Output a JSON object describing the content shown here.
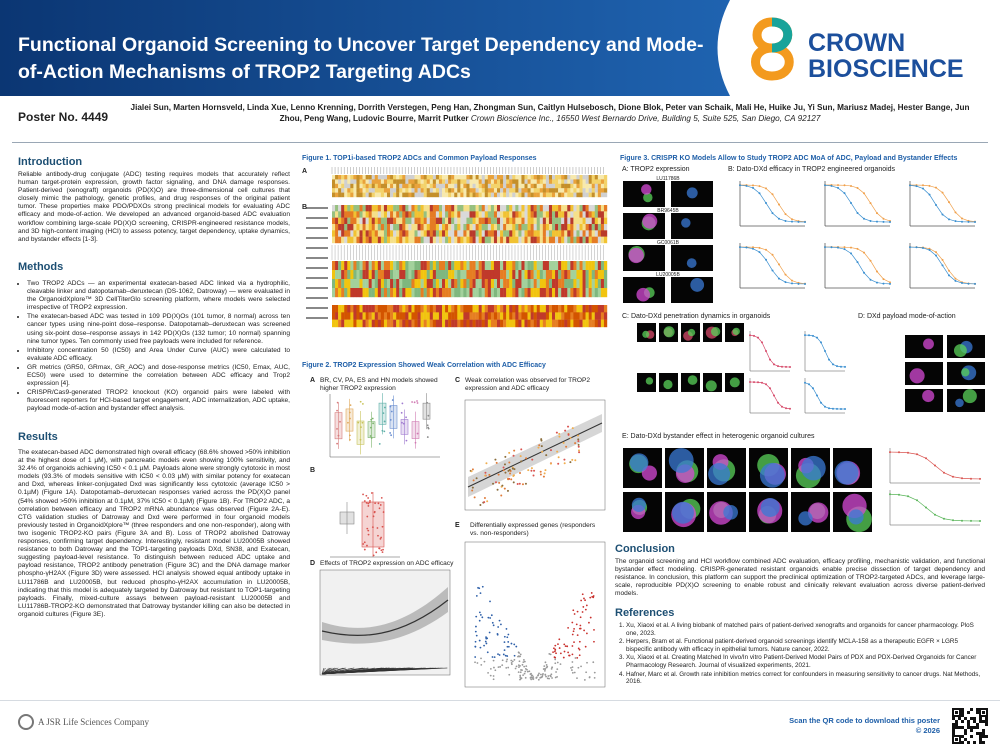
{
  "header": {
    "title": "Functional Organoid Screening to Uncover Target Dependency and Mode-of-Action Mechanisms of TROP2 Targeting ADCs",
    "logo_line1": "CROWN",
    "logo_line2": "BIOSCIENCE"
  },
  "poster_number": "Poster No. 4449",
  "authors": "Jialei Sun, Marten Hornsveld, Linda Xue, Lenno Krenning, Dorrith Verstegen, Peng Han, Zhongman Sun, Caitlyn Hulsebosch, Dione Blok, Peter van Schaik, Mali He, Huike Ju, Yi Sun, Mariusz Madej, Hester Bange, Jun Zhou, Peng Wang, Ludovic Bourre, Marrit Putker",
  "affiliation": "Crown Bioscience Inc., 16550 West Bernardo Drive, Building 5, Suite 525, San Diego, CA 92127",
  "introduction": {
    "heading": "Introduction",
    "text": "Reliable antibody-drug conjugate (ADC) testing requires models that accurately reflect human target-protein expression, growth factor signaling, and DNA damage responses. Patient-derived (xenograft) organoids (PD(X)O) are three-dimensional cell cultures that closely mimic the pathology, genetic profiles, and drug responses of the original patient tumor. These properties make PDO/PDXOs strong preclinical models for evaluating ADC efficacy and mode-of-action. We developed an advanced organoid-based ADC evaluation workflow combining large-scale PD(X)O screening, CRISPR-engineered resistance models, and 3D high-content imaging (HCI) to assess potency, target dependency, uptake dynamics, and bystander effects [1-3]."
  },
  "methods": {
    "heading": "Methods",
    "items": [
      "Two TROP2 ADCs — an experimental exatecan-based ADC linked via a hydrophilic, cleavable linker and datopotamab–deruxtecan (DS-1062, Datroway) — were evaluated in the OrganoidXplore™ 3D CellTiterGlo screening platform, where models were selected irrespective of TROP2 expression.",
      "The exatecan-based ADC was tested in 109 PD(X)Os (101 tumor, 8 normal) across ten cancer types using nine-point dose–response. Datopotamab–deruxtecan was screened using six-point dose–response assays in 142 PD(X)Os (132 tumor; 10 normal) spanning nine tumor types. Ten commonly used free payloads were included for reference.",
      "Inhibitory concentration 50 (IC50) and Area Under Curve (AUC) were calculated to evaluate ADC efficacy.",
      "GR metrics (GR50, GRmax, GR_AOC) and dose-response metrics (IC50, Emax, AUC, EC50) were used to determine the correlation between ADC efficacy and Trop2 expression [4].",
      "CRISPR/Cas9-generated TROP2 knockout (KO) organoid pairs were labeled with fluorescent reporters for HCI-based target engagement, ADC internalization, ADC uptake, payload mode-of-action and bystander effect analysis."
    ]
  },
  "results": {
    "heading": "Results",
    "text": "The exatecan-based ADC demonstrated high overall efficacy (68.6% showed >50% inhibition at the highest dose of 1 µM), with pancreatic models even showing 100% sensitivity, and 32.4% of organoids achieving IC50 < 0.1 µM. Payloads alone were strongly cytotoxic in most models (93.3% of models sensitive with IC50 < 0.03 µM) with similar potency for exatecan and Dxd, whereas linker-conjugated Dxd was significantly less cytotoxic (average IC50 > 0.1µM) (Figure 1A). Datopotamab–deruxtecan responses varied across the PD(X)O panel (54% showed >50% inhibition at 0.1µM, 37% IC50 < 0.1µM) (Figure 1B). For TROP2 ADC, a correlation between efficacy and TROP2 mRNA abundance was observed (Figure 2A-E). CTG validation studies of Datroway and Dxd were performed in four organoid models previously tested in OrganoidXplore™ (three responders and one non-responder), along with two isogenic TROP2-KO pairs (Figure 3A and B). Loss of TROP2 abolished Datroway responses, confirming target dependency. Interestingly, resistant model LU20005B showed resistance to both Datroway and the TOP1-targeting payloads DXd, SN38, and Exatecan, suggesting payload-level resistance. To distinguish between reduced ADC uptake and payload resistance, TROP2 antibody penetration (Figure 3C) and the DNA damage marker phospho-γH2AX (Figure 3D) were assessed. HCI analysis showed equal antibody uptake in LU11786B and LU20005B, but reduced phospho-γH2AX accumulation in LU20005B, indicating that this model is adequately targeted by Datroway but resistant to TOP1-targeting payloads. Finally, mixed-culture assays between payload-resistant LU20005B and LU11786B-TROP2-KO demonstrated that Datroway bystander killing can also be detected in organoid cultures (Figure 3E)."
  },
  "figure1": {
    "title": "Figure 1. TOP1i-based TROP2 ADCs and Common Payload Responses",
    "panel_a": "A",
    "panel_b": "B"
  },
  "figure2": {
    "title": "Figure 2. TROP2 Expression Showed Weak Correlation with ADC Efficacy",
    "panels": [
      {
        "label": "A",
        "caption": "BR, CV, PA, ES and HN models showed higher TROP2 expression"
      },
      {
        "label": "B"
      },
      {
        "label": "C",
        "caption": "Weak correlation was observed for TROP2 expression and ADC efficacy"
      },
      {
        "label": "D",
        "caption": "Effects of TROP2 expression on ADC efficacy"
      },
      {
        "label": "E",
        "caption": "Differentially expressed genes (responders vs. non-responders)"
      }
    ]
  },
  "figure3": {
    "title": "Figure 3. CRISPR KO Models Allow to Study TROP2 ADC MoA of ADC, Payload and Bystander Effects",
    "panels": [
      "A: TROP2 expression",
      "B: Dato-DXd efficacy in TROP2 engineered organoids",
      "C: Dato-DXd penetration dynamics in organoids",
      "D: DXd payload mode-of-action",
      "E: Dato-DXd bystander effect in heterogenic organoid cultures"
    ],
    "models": [
      "LU11786B",
      "BR9645B",
      "GC0061B",
      "LU20005B"
    ]
  },
  "conclusion": {
    "heading": "Conclusion",
    "text": "The organoid screening and HCI workflow combined ADC evaluation, efficacy profiling, mechanistic validation, and functional bystander effect modeling. CRISPR-generated resistant organoids enable precise dissection of target dependency and resistance. In conclusion, this platform can support the preclinical optimization of TROP2-targeted ADCs, and leverage large-scale, reproducible PD(X)O screening to enable robust and clinically relevant evaluation across diverse patient-derived models."
  },
  "references": {
    "heading": "References",
    "items": [
      "Xu, Xiaoxi et al. A living biobank of matched pairs of patient-derived xenografts and organoids for cancer pharmacology. PloS one, 2023.",
      "Herpers, Bram et al. Functional patient-derived organoid screenings identify MCLA-158 as a therapeutic EGFR × LGR5 bispecific antibody with efficacy in epithelial tumors. Nature cancer, 2022.",
      "Xu, Xiaoxi et al. Creating Matched In vivo/In vitro Patient-Derived Model Pairs of PDX and PDX-Derived Organoids for Cancer Pharmacology Research. Journal of visualized experiments, 2021.",
      "Hafner, Marc et al. Growth rate inhibition metrics correct for confounders in measuring sensitivity to cancer drugs. Nat Methods, 2016."
    ]
  },
  "footer": {
    "company": "A JSR Life Sciences Company",
    "qr_note": "Scan the QR code to download this poster",
    "copyright": "© 2026"
  }
}
